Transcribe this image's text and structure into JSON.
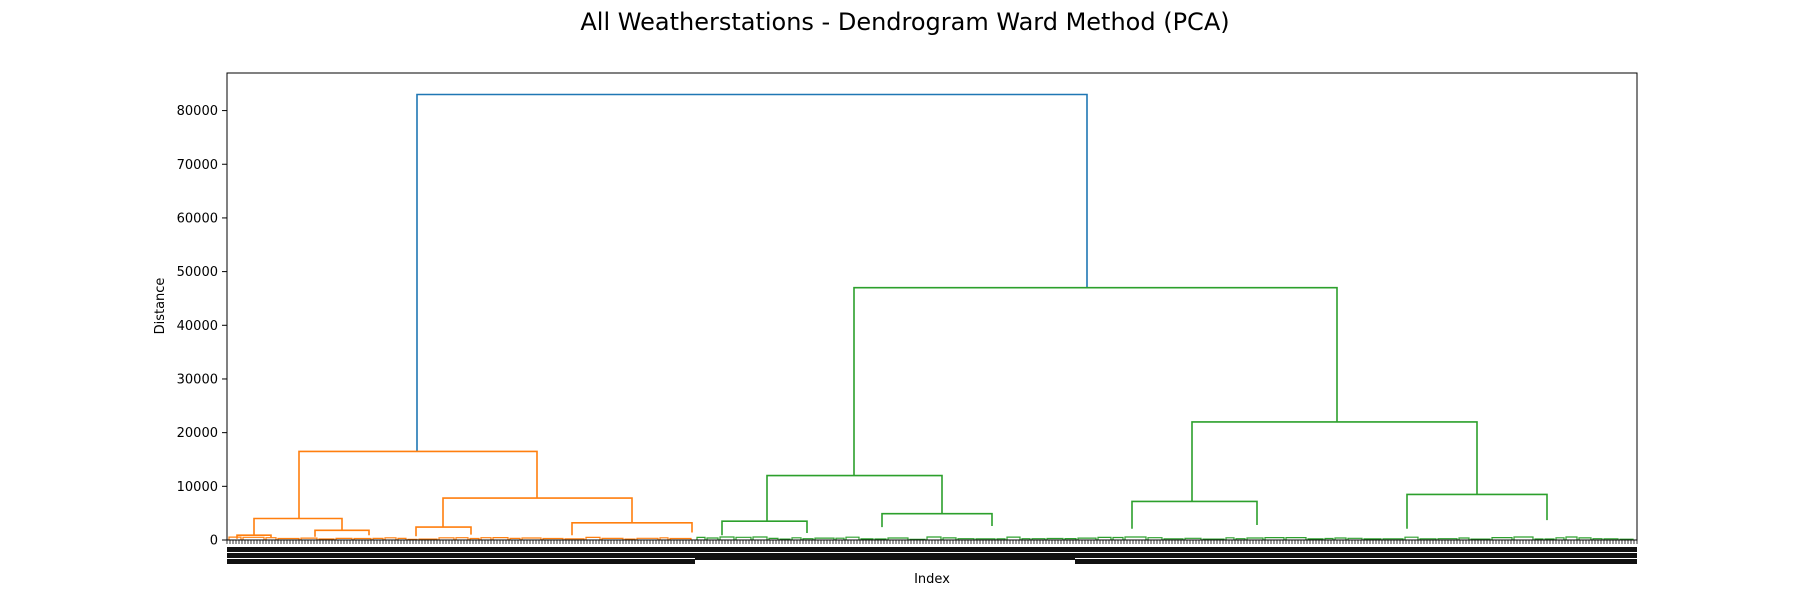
{
  "chart_data": {
    "type": "dendrogram",
    "title": "All Weatherstations - Dendrogram Ward Method (PCA)",
    "xlabel": "Index",
    "ylabel": "Distance",
    "ylim": [
      0,
      87000
    ],
    "yticks": [
      0,
      10000,
      20000,
      30000,
      40000,
      50000,
      60000,
      70000,
      80000
    ],
    "grid": false,
    "colors": {
      "cluster_1": "#ff7f0e",
      "cluster_2": "#2ca02c",
      "above_threshold": "#1f77b4"
    },
    "leaf_labels_legible": false,
    "links": [
      {
        "x": [
          190,
          190,
          860,
          860
        ],
        "y": [
          16500,
          83000,
          83000,
          47000
        ],
        "color": "above_threshold"
      },
      {
        "x": [
          72,
          72,
          310,
          310
        ],
        "y": [
          4000,
          16500,
          16500,
          7800
        ],
        "color": "cluster_1"
      },
      {
        "x": [
          27,
          27,
          115,
          115
        ],
        "y": [
          900,
          4000,
          4000,
          1800
        ],
        "color": "cluster_1"
      },
      {
        "x": [
          10,
          10,
          44,
          44
        ],
        "y": [
          250,
          900,
          900,
          500
        ],
        "color": "cluster_1"
      },
      {
        "x": [
          88,
          88,
          142,
          142
        ],
        "y": [
          600,
          1800,
          1800,
          900
        ],
        "color": "cluster_1"
      },
      {
        "x": [
          216,
          216,
          405,
          405
        ],
        "y": [
          2400,
          7800,
          7800,
          3200
        ],
        "color": "cluster_1"
      },
      {
        "x": [
          189,
          189,
          244,
          244
        ],
        "y": [
          700,
          2400,
          2400,
          1000
        ],
        "color": "cluster_1"
      },
      {
        "x": [
          345,
          345,
          465,
          465
        ],
        "y": [
          900,
          3200,
          3200,
          1400
        ],
        "color": "cluster_1"
      },
      {
        "x": [
          627,
          627,
          1110,
          1110
        ],
        "y": [
          12000,
          47000,
          47000,
          22000
        ],
        "color": "cluster_2"
      },
      {
        "x": [
          540,
          540,
          715,
          715
        ],
        "y": [
          3500,
          12000,
          12000,
          4900
        ],
        "color": "cluster_2"
      },
      {
        "x": [
          495,
          495,
          580,
          580
        ],
        "y": [
          900,
          3500,
          3500,
          1300
        ],
        "color": "cluster_2"
      },
      {
        "x": [
          655,
          655,
          765,
          765
        ],
        "y": [
          2400,
          4900,
          4900,
          2600
        ],
        "color": "cluster_2"
      },
      {
        "x": [
          965,
          965,
          1250,
          1250
        ],
        "y": [
          7200,
          22000,
          22000,
          8500
        ],
        "color": "cluster_2"
      },
      {
        "x": [
          905,
          905,
          1030,
          1030
        ],
        "y": [
          2100,
          7200,
          7200,
          2800
        ],
        "color": "cluster_2"
      },
      {
        "x": [
          1180,
          1180,
          1320,
          1320
        ],
        "y": [
          2100,
          8500,
          8500,
          3700
        ],
        "color": "cluster_2"
      }
    ]
  }
}
